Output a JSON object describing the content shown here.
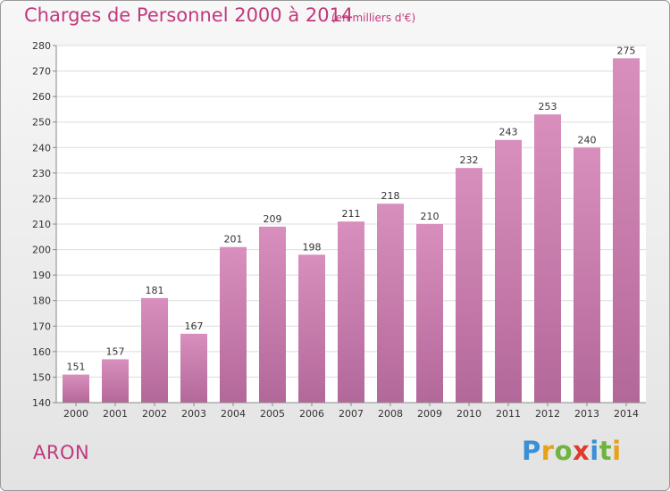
{
  "chart_data": {
    "type": "bar",
    "title": "Charges de Personnel 2000 à 2014",
    "subtitle": "(en milliers d'€)",
    "categories": [
      "2000",
      "2001",
      "2002",
      "2003",
      "2004",
      "2005",
      "2006",
      "2007",
      "2008",
      "2009",
      "2010",
      "2011",
      "2012",
      "2013",
      "2014"
    ],
    "values": [
      151,
      157,
      181,
      167,
      201,
      209,
      198,
      211,
      218,
      210,
      232,
      243,
      253,
      240,
      275
    ],
    "ylim": [
      140,
      280
    ],
    "yticks": [
      140,
      150,
      160,
      170,
      180,
      190,
      200,
      210,
      220,
      230,
      240,
      250,
      260,
      270,
      280
    ],
    "grid": true,
    "bar_color": "#d98fbd",
    "bar_color_dark": "#b3689a",
    "accent_color": "#c0397d"
  },
  "footer": {
    "commune": "ARON",
    "logo_text": "Proxiti",
    "logo_colors": [
      "#3a8fd6",
      "#e9a11a",
      "#6fb43f",
      "#e2392e",
      "#3a8fd6",
      "#6fb43f",
      "#e9a11a"
    ]
  }
}
